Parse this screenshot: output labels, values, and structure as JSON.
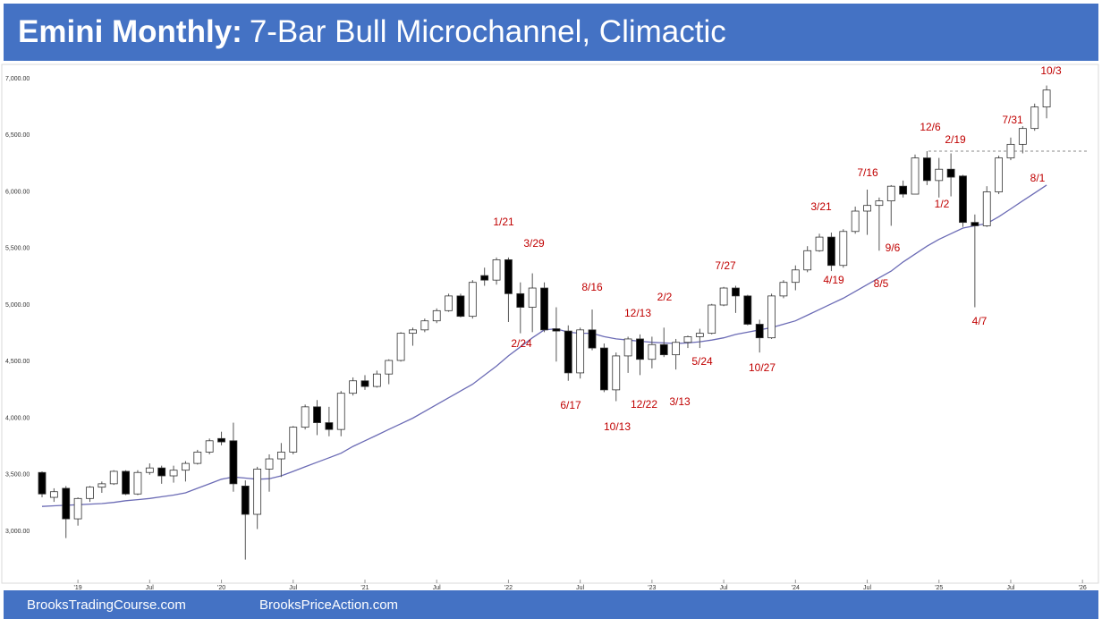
{
  "header": {
    "bold": "Emini Monthly:",
    "text": "7-Bar Bull Microchannel, Climactic"
  },
  "footer": {
    "left": "BrooksTradingCourse.com",
    "right": "BrooksPriceAction.com"
  },
  "chart_data": {
    "type": "candlestick",
    "x": [
      "2018-10",
      "2018-11",
      "2018-12",
      "2019-01",
      "2019-02",
      "2019-03",
      "2019-04",
      "2019-05",
      "2019-06",
      "2019-07",
      "2019-08",
      "2019-09",
      "2019-10",
      "2019-11",
      "2019-12",
      "2020-01",
      "2020-02",
      "2020-03",
      "2020-04",
      "2020-05",
      "2020-06",
      "2020-07",
      "2020-08",
      "2020-09",
      "2020-10",
      "2020-11",
      "2020-12",
      "2021-01",
      "2021-02",
      "2021-03",
      "2021-04",
      "2021-05",
      "2021-06",
      "2021-07",
      "2021-08",
      "2021-09",
      "2021-10",
      "2021-11",
      "2021-12",
      "2022-01",
      "2022-02",
      "2022-03",
      "2022-04",
      "2022-05",
      "2022-06",
      "2022-07",
      "2022-08",
      "2022-09",
      "2022-10",
      "2022-11",
      "2022-12",
      "2023-01",
      "2023-02",
      "2023-03",
      "2023-04",
      "2023-05",
      "2023-06",
      "2023-07",
      "2023-08",
      "2023-09",
      "2023-10",
      "2023-11",
      "2023-12",
      "2024-01",
      "2024-02",
      "2024-03",
      "2024-04",
      "2024-05",
      "2024-06",
      "2024-07",
      "2024-08",
      "2024-09",
      "2024-10",
      "2024-11",
      "2024-12",
      "2025-01",
      "2025-02",
      "2025-03",
      "2025-04",
      "2025-05",
      "2025-06",
      "2025-07",
      "2025-08",
      "2025-09",
      "2025-10"
    ],
    "open": [
      3520,
      3300,
      3380,
      3110,
      3290,
      3390,
      3420,
      3530,
      3330,
      3520,
      3560,
      3490,
      3540,
      3600,
      3700,
      3820,
      3800,
      3400,
      3150,
      3550,
      3640,
      3700,
      3920,
      4100,
      3960,
      3900,
      4220,
      4330,
      4280,
      4390,
      4510,
      4750,
      4780,
      4860,
      4950,
      5080,
      4900,
      5260,
      5220,
      5400,
      5100,
      4980,
      5150,
      4790,
      4770,
      4400,
      4780,
      4620,
      4250,
      4550,
      4700,
      4520,
      4650,
      4560,
      4670,
      4720,
      4750,
      5000,
      5150,
      5080,
      4830,
      4710,
      5080,
      5200,
      5310,
      5480,
      5600,
      5350,
      5650,
      5830,
      5880,
      5920,
      6050,
      5980,
      6300,
      6100,
      6200,
      6140,
      5730,
      5700,
      6000,
      6300,
      6420,
      6560,
      6750
    ],
    "high": [
      3530,
      3380,
      3400,
      3300,
      3400,
      3440,
      3540,
      3540,
      3540,
      3600,
      3580,
      3580,
      3620,
      3720,
      3820,
      3880,
      3960,
      3450,
      3570,
      3680,
      3780,
      3930,
      4120,
      4160,
      4100,
      4240,
      4360,
      4380,
      4420,
      4520,
      4760,
      4800,
      4880,
      4970,
      5100,
      5100,
      5220,
      5330,
      5420,
      5420,
      5200,
      5280,
      5200,
      4980,
      4820,
      4800,
      4960,
      4660,
      4580,
      4720,
      4740,
      4720,
      4800,
      4700,
      4730,
      4790,
      5010,
      5160,
      5170,
      5090,
      4870,
      5100,
      5220,
      5350,
      5520,
      5630,
      5640,
      5670,
      5870,
      6020,
      5950,
      6060,
      6100,
      6330,
      6360,
      6300,
      6340,
      6150,
      5800,
      6050,
      6320,
      6480,
      6580,
      6780,
      6940
    ],
    "low": [
      3300,
      3260,
      2940,
      3050,
      3260,
      3340,
      3410,
      3320,
      3320,
      3500,
      3420,
      3430,
      3440,
      3590,
      3680,
      3760,
      3350,
      2750,
      3020,
      3350,
      3480,
      3680,
      3900,
      3850,
      3840,
      3840,
      4200,
      4250,
      4270,
      4300,
      4500,
      4640,
      4760,
      4840,
      4940,
      4890,
      4880,
      5170,
      5180,
      4850,
      4750,
      4760,
      4760,
      4500,
      4330,
      4350,
      4600,
      4230,
      4150,
      4400,
      4380,
      4440,
      4540,
      4430,
      4620,
      4620,
      4740,
      4990,
      4930,
      4820,
      4580,
      4700,
      5060,
      5130,
      5290,
      5470,
      5300,
      5330,
      5630,
      5620,
      5480,
      5700,
      5950,
      5980,
      6060,
      5950,
      5960,
      5690,
      4980,
      5690,
      5980,
      6280,
      6340,
      6540,
      6650
    ],
    "close": [
      3330,
      3350,
      3110,
      3290,
      3390,
      3420,
      3530,
      3330,
      3520,
      3560,
      3490,
      3540,
      3600,
      3700,
      3800,
      3790,
      3420,
      3150,
      3550,
      3640,
      3700,
      3920,
      4100,
      3960,
      3900,
      4220,
      4330,
      4280,
      4390,
      4510,
      4750,
      4780,
      4860,
      4950,
      5080,
      4900,
      5200,
      5220,
      5400,
      5100,
      4980,
      5150,
      4780,
      4770,
      4400,
      4780,
      4620,
      4250,
      4550,
      4700,
      4520,
      4650,
      4560,
      4670,
      4720,
      4750,
      5000,
      5150,
      5080,
      4830,
      4710,
      5080,
      5200,
      5310,
      5480,
      5600,
      5350,
      5650,
      5830,
      5880,
      5920,
      6050,
      5980,
      6300,
      6100,
      6200,
      6130,
      5730,
      5700,
      6000,
      6300,
      6420,
      6560,
      6750,
      6900
    ],
    "up_color": "#ffffff",
    "down_color": "#000000",
    "moving_average": {
      "color": "#6b6bb5",
      "values": [
        3220,
        3225,
        3230,
        3235,
        3240,
        3245,
        3255,
        3270,
        3280,
        3290,
        3305,
        3320,
        3340,
        3380,
        3420,
        3460,
        3480,
        3470,
        3460,
        3465,
        3490,
        3530,
        3570,
        3610,
        3650,
        3690,
        3750,
        3800,
        3850,
        3900,
        3950,
        4000,
        4060,
        4120,
        4180,
        4240,
        4300,
        4380,
        4460,
        4550,
        4630,
        4710,
        4780,
        4790,
        4760,
        4750,
        4750,
        4720,
        4700,
        4690,
        4680,
        4670,
        4665,
        4660,
        4665,
        4675,
        4690,
        4710,
        4740,
        4760,
        4780,
        4800,
        4830,
        4860,
        4910,
        4960,
        5010,
        5060,
        5120,
        5180,
        5240,
        5300,
        5380,
        5450,
        5520,
        5580,
        5630,
        5680,
        5700,
        5720,
        5780,
        5850,
        5920,
        5990,
        6060
      ]
    },
    "reference_line": 6360,
    "annotations": [
      "10/3",
      "12/6",
      "2/19",
      "7/31",
      "8/1",
      "1/2",
      "4/7",
      "7/16",
      "9/6",
      "8/5",
      "3/21",
      "4/19",
      "7/27",
      "10/27",
      "5/24",
      "2/2",
      "12/13",
      "12/22",
      "3/13",
      "10/13",
      "8/16",
      "6/17",
      "2/24",
      "1/21",
      "3/29"
    ],
    "annotation_color": "#c00000",
    "ylim": [
      2700,
      7100
    ],
    "yticks": [
      {
        "value": 3000,
        "label": "3,000.00"
      },
      {
        "value": 3500,
        "label": "3,500.00"
      },
      {
        "value": 4000,
        "label": "4,000.00"
      },
      {
        "value": 4500,
        "label": "4,500.00"
      },
      {
        "value": 5000,
        "label": "5,000.00"
      },
      {
        "value": 5500,
        "label": "5,500.00"
      },
      {
        "value": 6000,
        "label": "6,000.00"
      },
      {
        "value": 6500,
        "label": "6,500.00"
      },
      {
        "value": 7000,
        "label": "7,000.00"
      }
    ],
    "xticks": [
      {
        "value": "2019-01",
        "label": "'19"
      },
      {
        "value": "2019-07",
        "label": "Jul"
      },
      {
        "value": "2020-01",
        "label": "'20"
      },
      {
        "value": "2020-07",
        "label": "Jul"
      },
      {
        "value": "2021-01",
        "label": "'21"
      },
      {
        "value": "2021-07",
        "label": "Jul"
      },
      {
        "value": "2022-01",
        "label": "'22"
      },
      {
        "value": "2022-07",
        "label": "Jul"
      },
      {
        "value": "2023-01",
        "label": "'23"
      },
      {
        "value": "2023-07",
        "label": "Jul"
      },
      {
        "value": "2024-01",
        "label": "'24"
      },
      {
        "value": "2024-07",
        "label": "Jul"
      },
      {
        "value": "2025-01",
        "label": "'25"
      },
      {
        "value": "2025-07",
        "label": "Jul"
      },
      {
        "value": "2026-01",
        "label": "'26"
      }
    ]
  }
}
